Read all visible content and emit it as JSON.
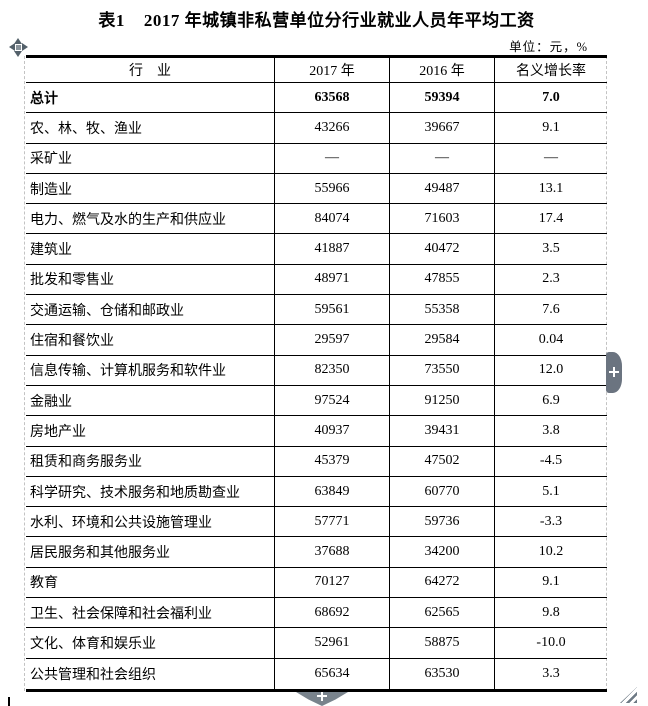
{
  "title": "表1    2017 年城镇非私营单位分行业就业人员年平均工资",
  "unit_note": "单位：元，%",
  "table": {
    "headers": [
      "行　业",
      "2017 年",
      "2016 年",
      "名义增长率"
    ],
    "rows": [
      {
        "industry": "总计",
        "y2017": "63568",
        "y2016": "59394",
        "growth": "7.0",
        "bold": true
      },
      {
        "industry": "农、林、牧、渔业",
        "y2017": "43266",
        "y2016": "39667",
        "growth": "9.1",
        "bold": false
      },
      {
        "industry": "采矿业",
        "y2017": "—",
        "y2016": "—",
        "growth": "—",
        "bold": false
      },
      {
        "industry": "制造业",
        "y2017": "55966",
        "y2016": "49487",
        "growth": "13.1",
        "bold": false
      },
      {
        "industry": "电力、燃气及水的生产和供应业",
        "y2017": "84074",
        "y2016": "71603",
        "growth": "17.4",
        "bold": false
      },
      {
        "industry": "建筑业",
        "y2017": "41887",
        "y2016": "40472",
        "growth": "3.5",
        "bold": false
      },
      {
        "industry": "批发和零售业",
        "y2017": "48971",
        "y2016": "47855",
        "growth": "2.3",
        "bold": false
      },
      {
        "industry": "交通运输、仓储和邮政业",
        "y2017": "59561",
        "y2016": "55358",
        "growth": "7.6",
        "bold": false
      },
      {
        "industry": "住宿和餐饮业",
        "y2017": "29597",
        "y2016": "29584",
        "growth": "0.04",
        "bold": false
      },
      {
        "industry": "信息传输、计算机服务和软件业",
        "y2017": "82350",
        "y2016": "73550",
        "growth": "12.0",
        "bold": false
      },
      {
        "industry": "金融业",
        "y2017": "97524",
        "y2016": "91250",
        "growth": "6.9",
        "bold": false
      },
      {
        "industry": "房地产业",
        "y2017": "40937",
        "y2016": "39431",
        "growth": "3.8",
        "bold": false
      },
      {
        "industry": "租赁和商务服务业",
        "y2017": "45379",
        "y2016": "47502",
        "growth": "-4.5",
        "bold": false
      },
      {
        "industry": "科学研究、技术服务和地质勘查业",
        "y2017": "63849",
        "y2016": "60770",
        "growth": "5.1",
        "bold": false
      },
      {
        "industry": "水利、环境和公共设施管理业",
        "y2017": "57771",
        "y2016": "59736",
        "growth": "-3.3",
        "bold": false
      },
      {
        "industry": "居民服务和其他服务业",
        "y2017": "37688",
        "y2016": "34200",
        "growth": "10.2",
        "bold": false
      },
      {
        "industry": "教育",
        "y2017": "70127",
        "y2016": "64272",
        "growth": "9.1",
        "bold": false
      },
      {
        "industry": "卫生、社会保障和社会福利业",
        "y2017": "68692",
        "y2016": "62565",
        "growth": "9.8",
        "bold": false
      },
      {
        "industry": "文化、体育和娱乐业",
        "y2017": "52961",
        "y2016": "58875",
        "growth": "-10.0",
        "bold": false
      },
      {
        "industry": "公共管理和社会组织",
        "y2017": "65634",
        "y2016": "63530",
        "growth": "3.3",
        "bold": false
      }
    ]
  },
  "icons": {
    "move_handle": "four-direction-move-arrows",
    "scroll_handle": "plus",
    "insert_row_handle": "plus",
    "resize_grip": "diagonal-stripes-triangle"
  },
  "colors": {
    "text": "#000000",
    "border": "#000000",
    "boundary_guide": "#c3c3c3",
    "handle_gray": "#6b7480",
    "background": "#ffffff"
  }
}
